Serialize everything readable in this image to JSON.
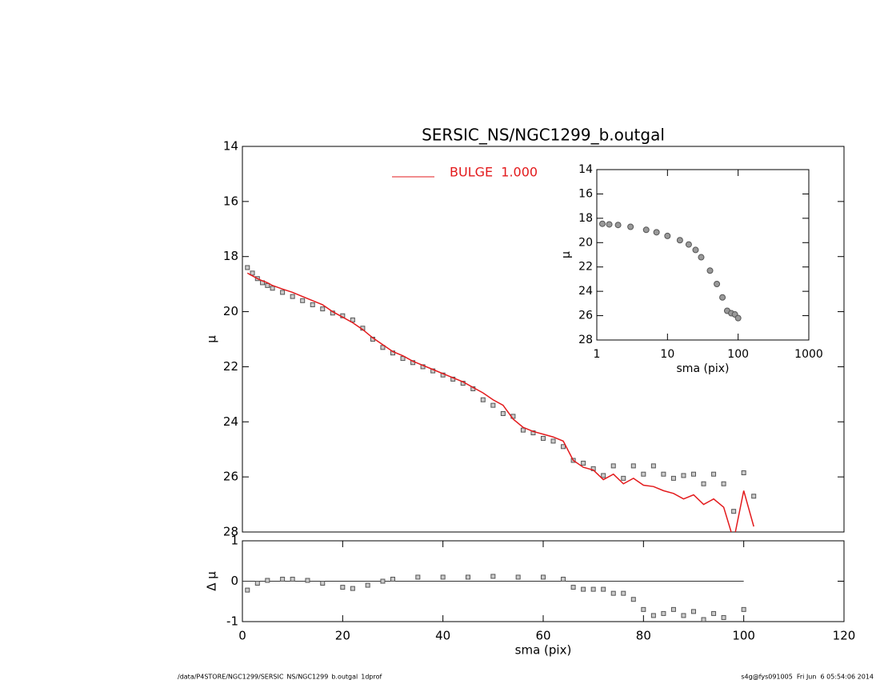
{
  "chart_data": [
    {
      "type": "scatter",
      "title": "SERSIC_NS/NGC1299_b.outgal",
      "y_label": "μ",
      "x": [
        1,
        2,
        3,
        4,
        5,
        6,
        8,
        10,
        12,
        14,
        16,
        18,
        20,
        22,
        24,
        26,
        28,
        30,
        32,
        34,
        36,
        38,
        40,
        42,
        44,
        46,
        48,
        50,
        52,
        54,
        56,
        58,
        60,
        62,
        64,
        66,
        68,
        70,
        72,
        74,
        76,
        78,
        80,
        82,
        84,
        86,
        88,
        90,
        92,
        94,
        96,
        98,
        100,
        102
      ],
      "series": [
        {
          "mark": "square",
          "color": "#555555",
          "values": [
            18.4,
            18.6,
            18.8,
            18.95,
            19.05,
            19.15,
            19.3,
            19.45,
            19.6,
            19.75,
            19.9,
            20.05,
            20.15,
            20.3,
            20.6,
            21.0,
            21.3,
            21.5,
            21.7,
            21.85,
            22.0,
            22.15,
            22.3,
            22.45,
            22.6,
            22.8,
            23.2,
            23.4,
            23.7,
            23.8,
            24.3,
            24.4,
            24.6,
            24.7,
            24.9,
            25.4,
            25.5,
            25.7,
            25.95,
            25.6,
            26.05,
            25.6,
            25.9,
            25.6,
            25.9,
            26.05,
            25.95,
            25.9,
            26.25,
            25.9,
            26.25,
            27.25,
            25.85,
            26.7
          ]
        },
        {
          "mark": "line",
          "name": "BULGE  1.000",
          "color": "#e31a1c",
          "values": [
            18.6,
            18.7,
            18.8,
            18.88,
            18.95,
            19.05,
            19.18,
            19.3,
            19.45,
            19.6,
            19.75,
            20.0,
            20.2,
            20.4,
            20.65,
            20.95,
            21.2,
            21.45,
            21.6,
            21.8,
            21.95,
            22.1,
            22.25,
            22.4,
            22.55,
            22.75,
            22.95,
            23.2,
            23.4,
            23.9,
            24.2,
            24.35,
            24.45,
            24.55,
            24.7,
            25.4,
            25.65,
            25.75,
            26.1,
            25.9,
            26.25,
            26.05,
            26.3,
            26.35,
            26.5,
            26.6,
            26.8,
            26.65,
            27.0,
            26.8,
            27.1,
            28.3,
            26.5,
            27.8
          ]
        }
      ],
      "xlim": [
        0,
        120
      ],
      "ylim": [
        28,
        14
      ],
      "yticks": [
        14,
        16,
        18,
        20,
        22,
        24,
        26,
        28
      ]
    },
    {
      "type": "scatter",
      "y_label": "Δ μ",
      "x_label": "sma (pix)",
      "x": [
        1,
        3,
        5,
        8,
        10,
        13,
        16,
        20,
        22,
        25,
        28,
        30,
        35,
        40,
        45,
        50,
        55,
        60,
        64,
        66,
        68,
        70,
        72,
        74,
        76,
        78,
        80,
        82,
        84,
        86,
        88,
        90,
        92,
        94,
        96,
        100
      ],
      "series": [
        {
          "mark": "square",
          "color": "#555555",
          "values": [
            -0.22,
            -0.05,
            0.02,
            0.05,
            0.05,
            0.02,
            -0.05,
            -0.15,
            -0.18,
            -0.1,
            0.0,
            0.05,
            0.1,
            0.1,
            0.1,
            0.12,
            0.1,
            0.1,
            0.05,
            -0.15,
            -0.2,
            -0.2,
            -0.2,
            -0.3,
            -0.3,
            -0.45,
            -0.7,
            -0.85,
            -0.8,
            -0.7,
            -0.85,
            -0.75,
            -0.95,
            -0.8,
            -0.9,
            -0.7
          ]
        }
      ],
      "hline": 0,
      "xlim": [
        0,
        120
      ],
      "xticks": [
        0,
        20,
        40,
        60,
        80,
        100,
        120
      ],
      "ylim": [
        -1,
        1
      ],
      "yticks": [
        -1,
        0,
        1
      ]
    },
    {
      "type": "scatter",
      "y_label": "μ",
      "x_label": "sma (pix)",
      "xscale": "log",
      "x": [
        1.2,
        1.5,
        2,
        3,
        5,
        7,
        10,
        15,
        20,
        25,
        30,
        40,
        50,
        60,
        70,
        80,
        90,
        100
      ],
      "series": [
        {
          "mark": "circle",
          "color": "#555555",
          "values": [
            18.45,
            18.5,
            18.55,
            18.7,
            18.95,
            19.15,
            19.45,
            19.8,
            20.15,
            20.6,
            21.2,
            22.3,
            23.4,
            24.5,
            25.6,
            25.8,
            25.9,
            26.2
          ]
        }
      ],
      "xlim": [
        1,
        1000
      ],
      "xticks": [
        1,
        10,
        100,
        1000
      ],
      "ylim": [
        28,
        14
      ],
      "yticks": [
        14,
        16,
        18,
        20,
        22,
        24,
        26,
        28
      ]
    }
  ],
  "footer": {
    "left": "/data/P4STORE/NGC1299/SERSIC_NS/NGC1299_b.outgal_1dprof",
    "right": "s4g@fys091005  Fri Jun  6 05:54:06 2014"
  }
}
